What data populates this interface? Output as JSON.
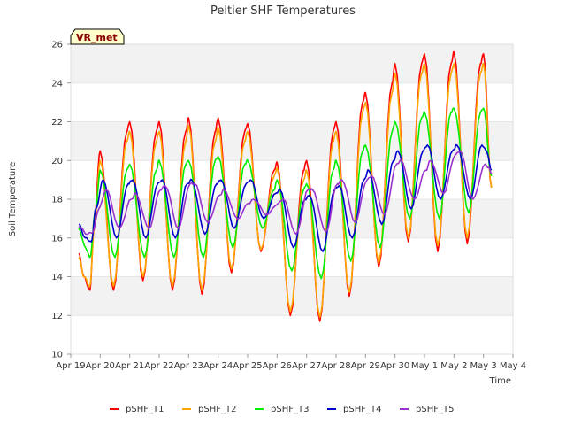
{
  "chart_data": {
    "type": "line",
    "title": "Peltier SHF Temperatures",
    "xlabel": "Time",
    "ylabel": "Soil Temperature",
    "ylim": [
      10,
      26
    ],
    "y_ticks": [
      10,
      12,
      14,
      16,
      18,
      20,
      22,
      24,
      26
    ],
    "xlim": [
      0,
      15
    ],
    "x_ticks": [
      "Apr 19",
      "Apr 20",
      "Apr 21",
      "Apr 22",
      "Apr 23",
      "Apr 24",
      "Apr 25",
      "Apr 26",
      "Apr 27",
      "Apr 28",
      "Apr 29",
      "Apr 30",
      "May 1",
      "May 2",
      "May 3",
      "May 4"
    ],
    "x_unit": "days since Apr 19",
    "badge": "VR_met",
    "grid": "horizontal bands",
    "legend_position": "bottom",
    "series": [
      {
        "name": "pSHF_T1",
        "color": "#ff0000",
        "x": [
          0.27,
          0.45,
          0.65,
          0.8,
          1.0,
          1.45,
          1.9,
          2.0,
          2.45,
          2.9,
          3.0,
          3.45,
          3.9,
          4.0,
          4.45,
          4.9,
          5.0,
          5.45,
          5.9,
          6.0,
          6.45,
          6.9,
          7.0,
          7.45,
          7.9,
          8.0,
          8.45,
          8.9,
          9.0,
          9.45,
          9.9,
          10.0,
          10.45,
          10.9,
          11.0,
          11.45,
          11.9,
          12.0,
          12.45,
          12.9,
          13.0,
          13.45,
          13.9,
          14.0,
          14.27
        ],
        "y": [
          15.2,
          14.0,
          13.3,
          17.0,
          20.5,
          13.3,
          21.5,
          22.0,
          13.8,
          21.5,
          22.0,
          13.3,
          21.5,
          22.2,
          13.1,
          21.5,
          22.2,
          14.2,
          21.5,
          21.9,
          15.3,
          19.5,
          19.9,
          12.0,
          19.5,
          20.0,
          11.7,
          21.5,
          22.0,
          13.0,
          23.0,
          23.5,
          14.5,
          24.0,
          25.0,
          15.8,
          25.0,
          25.5,
          15.3,
          25.0,
          25.6,
          15.7,
          25.0,
          25.5,
          18.6
        ]
      },
      {
        "name": "pSHF_T2",
        "color": "#ffa500",
        "x": [
          0.27,
          0.45,
          0.65,
          0.8,
          1.0,
          1.45,
          1.9,
          2.0,
          2.45,
          2.9,
          3.0,
          3.45,
          3.9,
          4.0,
          4.45,
          4.9,
          5.0,
          5.45,
          5.9,
          6.0,
          6.45,
          6.9,
          7.0,
          7.45,
          7.9,
          8.0,
          8.45,
          8.9,
          9.0,
          9.45,
          9.9,
          10.0,
          10.45,
          10.9,
          11.0,
          11.45,
          11.9,
          12.0,
          12.45,
          12.9,
          13.0,
          13.45,
          13.9,
          14.0,
          14.27
        ],
        "y": [
          15.0,
          14.0,
          13.5,
          16.5,
          20.0,
          13.5,
          21.0,
          21.5,
          14.0,
          21.0,
          21.5,
          13.5,
          21.0,
          21.8,
          13.3,
          21.0,
          21.7,
          14.4,
          21.0,
          21.5,
          15.4,
          19.2,
          19.6,
          12.2,
          19.0,
          19.5,
          11.9,
          21.0,
          21.5,
          13.2,
          22.5,
          23.0,
          14.7,
          23.5,
          24.5,
          16.0,
          24.5,
          25.0,
          15.6,
          24.5,
          25.0,
          16.0,
          24.5,
          25.0,
          18.6
        ]
      },
      {
        "name": "pSHF_T3",
        "color": "#00ee00",
        "x": [
          0.27,
          0.5,
          0.65,
          0.85,
          1.0,
          1.5,
          1.9,
          2.0,
          2.5,
          2.9,
          3.0,
          3.5,
          3.9,
          4.0,
          4.5,
          4.9,
          5.0,
          5.5,
          5.9,
          6.0,
          6.5,
          6.9,
          7.0,
          7.5,
          7.9,
          8.0,
          8.5,
          8.9,
          9.0,
          9.5,
          9.9,
          10.0,
          10.5,
          10.9,
          11.0,
          11.5,
          11.9,
          12.0,
          12.5,
          12.9,
          13.0,
          13.5,
          13.9,
          14.0,
          14.27
        ],
        "y": [
          16.5,
          15.5,
          15.0,
          17.5,
          19.5,
          15.0,
          19.5,
          19.8,
          15.0,
          19.5,
          20.0,
          15.0,
          19.8,
          20.0,
          15.0,
          20.0,
          20.2,
          15.5,
          19.8,
          20.0,
          16.5,
          18.5,
          19.0,
          14.3,
          18.5,
          18.8,
          13.9,
          19.5,
          20.0,
          14.8,
          20.5,
          20.8,
          15.5,
          21.5,
          22.0,
          17.0,
          22.2,
          22.5,
          17.0,
          22.5,
          22.7,
          17.3,
          22.5,
          22.7,
          19.2
        ]
      },
      {
        "name": "pSHF_T4",
        "color": "#0000cc",
        "x": [
          0.27,
          0.5,
          0.7,
          0.85,
          1.1,
          1.55,
          1.95,
          2.1,
          2.55,
          2.95,
          3.1,
          3.55,
          3.95,
          4.1,
          4.55,
          4.95,
          5.1,
          5.55,
          5.95,
          6.1,
          6.55,
          6.95,
          7.1,
          7.55,
          7.95,
          8.1,
          8.55,
          8.95,
          9.1,
          9.55,
          9.95,
          10.1,
          10.55,
          10.95,
          11.1,
          11.55,
          11.95,
          12.1,
          12.55,
          12.95,
          13.1,
          13.55,
          13.95,
          14.1,
          14.27
        ],
        "y": [
          16.7,
          16.0,
          15.8,
          17.5,
          19.0,
          16.0,
          18.8,
          19.0,
          16.0,
          18.8,
          19.0,
          16.0,
          18.8,
          19.0,
          16.2,
          18.8,
          19.0,
          16.5,
          18.8,
          19.0,
          17.0,
          18.3,
          18.5,
          15.5,
          18.0,
          18.2,
          15.3,
          18.5,
          18.7,
          16.0,
          19.0,
          19.5,
          16.7,
          20.0,
          20.5,
          17.5,
          20.5,
          20.8,
          18.0,
          20.5,
          20.8,
          18.0,
          20.8,
          20.5,
          19.5
        ]
      },
      {
        "name": "pSHF_T5",
        "color": "#9932cc",
        "x": [
          0.27,
          0.55,
          0.75,
          0.95,
          1.2,
          1.65,
          2.05,
          2.2,
          2.65,
          3.05,
          3.2,
          3.65,
          4.05,
          4.2,
          4.65,
          5.05,
          5.2,
          5.65,
          6.05,
          6.2,
          6.65,
          7.05,
          7.2,
          7.65,
          8.05,
          8.2,
          8.65,
          9.05,
          9.2,
          9.65,
          10.05,
          10.2,
          10.65,
          11.05,
          11.2,
          11.65,
          12.05,
          12.2,
          12.65,
          13.05,
          13.2,
          13.65,
          14.05,
          14.2,
          14.27
        ],
        "y": [
          16.6,
          16.2,
          16.3,
          17.5,
          18.5,
          16.5,
          18.0,
          18.3,
          16.5,
          18.5,
          18.7,
          16.5,
          18.8,
          18.8,
          16.8,
          18.2,
          18.5,
          17.0,
          17.8,
          18.0,
          17.2,
          17.8,
          18.0,
          16.2,
          18.5,
          18.5,
          16.3,
          18.8,
          19.0,
          16.8,
          19.0,
          19.2,
          17.2,
          19.8,
          20.0,
          18.0,
          19.5,
          20.0,
          18.3,
          20.3,
          20.5,
          18.0,
          19.8,
          19.6,
          19.3
        ]
      }
    ]
  }
}
